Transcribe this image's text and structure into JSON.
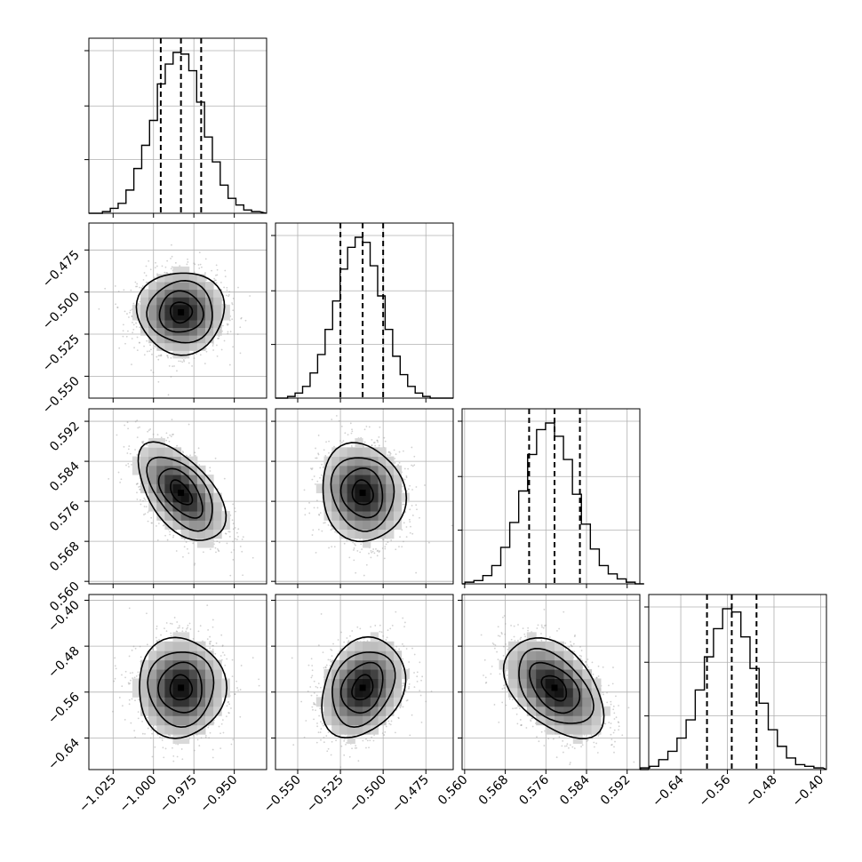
{
  "chart_data": {
    "type": "corner",
    "grid": true,
    "parameters": [
      {
        "range": [
          -1.04,
          -0.93
        ],
        "ticks": [
          -1.025,
          -1.0,
          -0.975,
          -0.95
        ],
        "tick_labels": [
          "−1.025",
          "−1.000",
          "−0.975",
          "−0.950"
        ],
        "quantiles": [
          -0.9955,
          -0.983,
          -0.9705
        ],
        "mean": -0.983,
        "sd": 0.0135
      },
      {
        "range": [
          -0.563,
          -0.459
        ],
        "ticks": [
          -0.55,
          -0.525,
          -0.5,
          -0.475
        ],
        "tick_labels": [
          "−0.550",
          "−0.525",
          "−0.500",
          "−0.475"
        ],
        "quantiles": [
          -0.525,
          -0.512,
          -0.5
        ],
        "mean": -0.512,
        "sd": 0.0122
      },
      {
        "range": [
          0.5595,
          0.5945
        ],
        "ticks": [
          0.56,
          0.568,
          0.576,
          0.584,
          0.592
        ],
        "tick_labels": [
          "0.560",
          "0.568",
          "0.576",
          "0.584",
          "0.592"
        ],
        "quantiles": [
          0.5727,
          0.5777,
          0.5827
        ],
        "mean": 0.5777,
        "sd": 0.0049
      },
      {
        "range": [
          -0.695,
          -0.39
        ],
        "ticks": [
          -0.64,
          -0.56,
          -0.48,
          -0.4
        ],
        "tick_labels": [
          "−0.64",
          "−0.56",
          "−0.48",
          "−0.40"
        ],
        "quantiles": [
          -0.595,
          -0.5525,
          -0.51
        ],
        "mean": -0.5525,
        "sd": 0.0435
      }
    ],
    "correlations": [
      {
        "pair": [
          0,
          1
        ],
        "r": 0.0
      },
      {
        "pair": [
          0,
          2
        ],
        "r": -0.55
      },
      {
        "pair": [
          1,
          2
        ],
        "r": -0.1
      },
      {
        "pair": [
          0,
          3
        ],
        "r": 0.0
      },
      {
        "pair": [
          1,
          3
        ],
        "r": 0.25
      },
      {
        "pair": [
          2,
          3
        ],
        "r": -0.45
      }
    ],
    "histograms": [
      [
        1,
        3,
        6,
        14,
        27,
        41,
        56,
        78,
        90,
        97,
        96,
        86,
        67,
        46,
        31,
        17,
        9,
        5,
        2,
        1
      ],
      [
        1,
        3,
        7,
        15,
        26,
        41,
        58,
        77,
        90,
        96,
        93,
        79,
        61,
        41,
        25,
        14,
        7,
        3,
        1,
        0
      ],
      [
        1,
        2,
        5,
        11,
        22,
        37,
        56,
        78,
        93,
        97,
        89,
        75,
        54,
        36,
        21,
        11,
        6,
        3,
        1,
        0
      ],
      [
        1,
        2,
        6,
        11,
        19,
        30,
        48,
        68,
        85,
        97,
        95,
        80,
        61,
        40,
        24,
        14,
        7,
        3,
        2,
        1
      ]
    ]
  }
}
